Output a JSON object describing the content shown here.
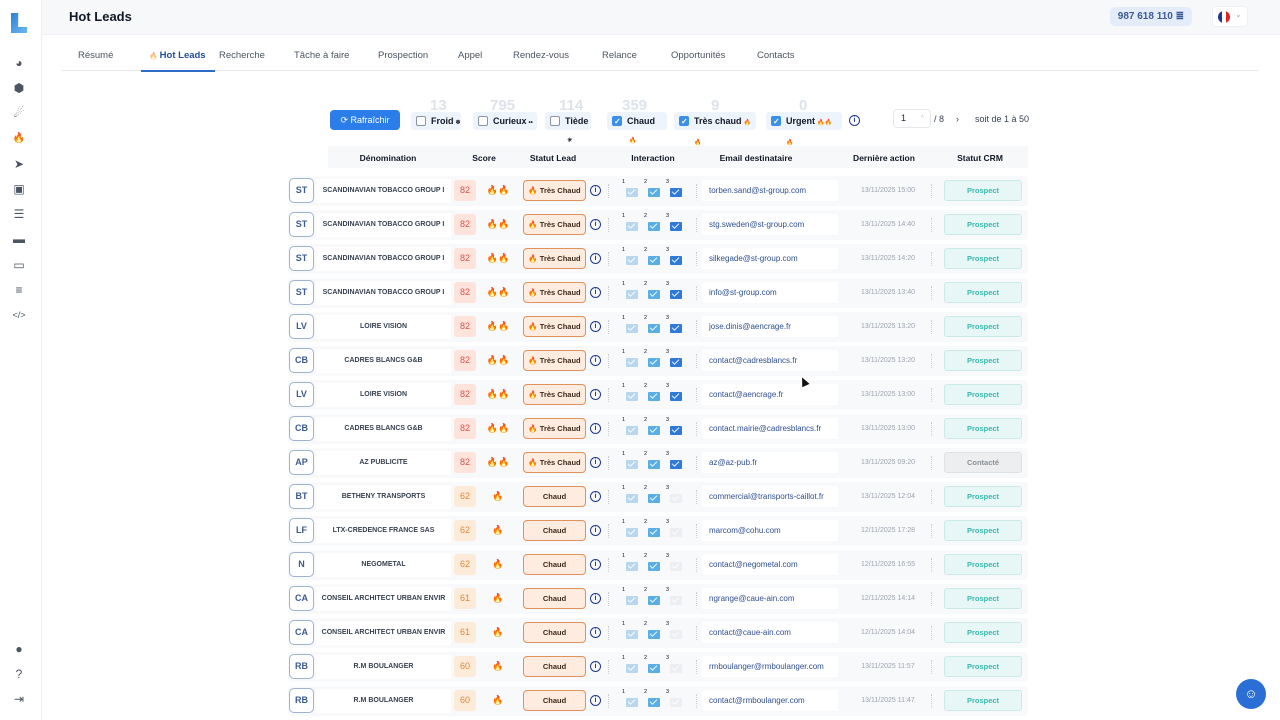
{
  "header": {
    "title": "Hot Leads",
    "credits": "987 618 110",
    "credits_icon": "coins-icon",
    "language": "fr"
  },
  "sidebar": {
    "icons": [
      "pie-chart-icon",
      "cube-icon",
      "comet-icon",
      "flame-icon",
      "send-icon",
      "linkedin-icon",
      "database-icon",
      "folder-icon",
      "card-icon",
      "coins-icon",
      "code-icon"
    ],
    "bottom_icons": [
      "user-icon",
      "help-icon",
      "logout-icon"
    ],
    "active": "flame-icon"
  },
  "tabs": [
    {
      "label": "Résumé"
    },
    {
      "label": "Hot Leads",
      "active": true
    },
    {
      "label": "Recherche"
    },
    {
      "label": "Tâche à faire"
    },
    {
      "label": "Prospection"
    },
    {
      "label": "Appel"
    },
    {
      "label": "Rendez-vous"
    },
    {
      "label": "Relance"
    },
    {
      "label": "Opportunités"
    },
    {
      "label": "Contacts"
    }
  ],
  "toolbar": {
    "refresh_label": "Rafraîchir",
    "filters": [
      {
        "label": "Froid",
        "icon": "❄",
        "count": "13",
        "checked": false
      },
      {
        "label": "Curieux",
        "icon": "••",
        "count": "795",
        "checked": false
      },
      {
        "label": "Tiède",
        "icon": "☀",
        "count": "114",
        "checked": false
      },
      {
        "label": "Chaud",
        "icon": "🔥",
        "count": "359",
        "checked": true
      },
      {
        "label": "Très chaud",
        "icon": "🔥🔥",
        "count": "9",
        "checked": true
      },
      {
        "label": "Urgent",
        "icon": "🔥🔥🔥",
        "count": "0",
        "checked": true
      }
    ],
    "page": "1",
    "total_pages": "/ 8",
    "range": "soit de 1 à 50"
  },
  "columns": [
    "Dénomination",
    "Score",
    "Statut Lead",
    "Interaction",
    "Email destinataire",
    "Dernière action",
    "Statut CRM"
  ],
  "colors": {
    "accent": "#2b7de9",
    "hot": "#e0915c",
    "prospect": "#3cb8ae"
  },
  "rows": [
    {
      "initials": "ST",
      "name": "SCANDINAVIAN TOBACCO  GROUP I",
      "score": "82",
      "flames": "🔥🔥",
      "status": "🔥 Très Chaud",
      "mails": 3,
      "email": "torben.sand@st-group.com",
      "date": "13/11/2025 15:00",
      "crm": "Prospect"
    },
    {
      "initials": "ST",
      "name": "SCANDINAVIAN TOBACCO  GROUP I",
      "score": "82",
      "flames": "🔥🔥",
      "status": "🔥 Très Chaud",
      "mails": 3,
      "email": "stg.sweden@st-group.com",
      "date": "13/11/2025 14:40",
      "crm": "Prospect"
    },
    {
      "initials": "ST",
      "name": "SCANDINAVIAN TOBACCO  GROUP I",
      "score": "82",
      "flames": "🔥🔥",
      "status": "🔥 Très Chaud",
      "mails": 3,
      "email": "silkegade@st-group.com",
      "date": "13/11/2025 14:20",
      "crm": "Prospect"
    },
    {
      "initials": "ST",
      "name": "SCANDINAVIAN TOBACCO  GROUP I",
      "score": "82",
      "flames": "🔥🔥",
      "status": "🔥 Très Chaud",
      "mails": 3,
      "email": "info@st-group.com",
      "date": "13/11/2025 13:40",
      "crm": "Prospect"
    },
    {
      "initials": "LV",
      "name": "LOIRE VISION",
      "score": "82",
      "flames": "🔥🔥",
      "status": "🔥 Très Chaud",
      "mails": 3,
      "email": "jose.dinis@aencrage.fr",
      "date": "13/11/2025 13:20",
      "crm": "Prospect"
    },
    {
      "initials": "CB",
      "name": "CADRES BLANCS G&B",
      "score": "82",
      "flames": "🔥🔥",
      "status": "🔥 Très Chaud",
      "mails": 3,
      "email": "contact@cadresblancs.fr",
      "date": "13/11/2025 13:20",
      "crm": "Prospect"
    },
    {
      "initials": "LV",
      "name": "LOIRE VISION",
      "score": "82",
      "flames": "🔥🔥",
      "status": "🔥 Très Chaud",
      "mails": 3,
      "email": "contact@aencrage.fr",
      "date": "13/11/2025 13:00",
      "crm": "Prospect"
    },
    {
      "initials": "CB",
      "name": "CADRES BLANCS G&B",
      "score": "82",
      "flames": "🔥🔥",
      "status": "🔥 Très Chaud",
      "mails": 3,
      "email": "contact.mairie@cadresblancs.fr",
      "date": "13/11/2025 13:00",
      "crm": "Prospect"
    },
    {
      "initials": "AP",
      "name": "AZ PUBLICITE",
      "score": "82",
      "flames": "🔥🔥",
      "status": "🔥 Très Chaud",
      "mails": 3,
      "email": "az@az-pub.fr",
      "date": "13/11/2025 09:20",
      "crm": "Contacté"
    },
    {
      "initials": "BT",
      "name": "BETHENY TRANSPORTS",
      "score": "62",
      "flames": "🔥",
      "status": "Chaud",
      "mails": 2,
      "email": "commercial@transports-caillot.fr",
      "date": "13/11/2025 12:04",
      "crm": "Prospect"
    },
    {
      "initials": "LF",
      "name": "LTX-CREDENCE FRANCE SAS",
      "score": "62",
      "flames": "🔥",
      "status": "Chaud",
      "mails": 2,
      "email": "marcom@cohu.com",
      "date": "12/11/2025 17:28",
      "crm": "Prospect"
    },
    {
      "initials": "N",
      "name": "NEGOMETAL",
      "score": "62",
      "flames": "🔥",
      "status": "Chaud",
      "mails": 2,
      "email": "contact@negometal.com",
      "date": "12/11/2025 16:55",
      "crm": "Prospect"
    },
    {
      "initials": "CA",
      "name": "CONSEIL ARCHITECT URBAN ENVIR",
      "score": "61",
      "flames": "🔥",
      "status": "Chaud",
      "mails": 2,
      "email": "ngrange@caue-ain.com",
      "date": "12/11/2025 14:14",
      "crm": "Prospect"
    },
    {
      "initials": "CA",
      "name": "CONSEIL ARCHITECT URBAN ENVIR",
      "score": "61",
      "flames": "🔥",
      "status": "Chaud",
      "mails": 2,
      "email": "contact@caue-ain.com",
      "date": "12/11/2025 14:04",
      "crm": "Prospect"
    },
    {
      "initials": "RB",
      "name": "R.M BOULANGER",
      "score": "60",
      "flames": "🔥",
      "status": "Chaud",
      "mails": 2,
      "email": "rmboulanger@rmboulanger.com",
      "date": "13/11/2025 11:57",
      "crm": "Prospect"
    },
    {
      "initials": "RB",
      "name": "R.M BOULANGER",
      "score": "60",
      "flames": "🔥",
      "status": "Chaud",
      "mails": 2,
      "email": "contact@rmboulanger.com",
      "date": "13/11/2025 11:47",
      "crm": "Prospect"
    }
  ]
}
